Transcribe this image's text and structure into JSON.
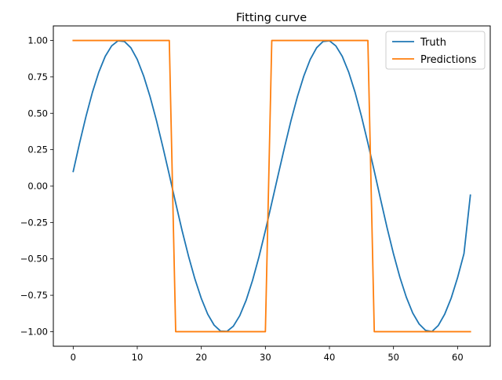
{
  "chart_data": {
    "type": "line",
    "title": "Fitting curve",
    "xlabel": "",
    "ylabel": "",
    "xlim": [
      -3.1,
      65.1
    ],
    "ylim": [
      -1.1,
      1.1
    ],
    "xticks": [
      0,
      10,
      20,
      30,
      40,
      50,
      60
    ],
    "yticks": [
      -1.0,
      -0.75,
      -0.5,
      -0.25,
      0.0,
      0.25,
      0.5,
      0.75,
      1.0
    ],
    "xtick_labels": [
      "0",
      "10",
      "20",
      "30",
      "40",
      "50",
      "60"
    ],
    "ytick_labels": [
      "−1.00",
      "−0.75",
      "−0.50",
      "−0.25",
      "0.00",
      "0.25",
      "0.50",
      "0.75",
      "1.00"
    ],
    "grid": false,
    "legend_position": "top-right",
    "x": [
      0,
      1,
      2,
      3,
      4,
      5,
      6,
      7,
      8,
      9,
      10,
      11,
      12,
      13,
      14,
      15,
      16,
      17,
      18,
      19,
      20,
      21,
      22,
      23,
      24,
      25,
      26,
      27,
      28,
      29,
      30,
      31,
      32,
      33,
      34,
      35,
      36,
      37,
      38,
      39,
      40,
      41,
      42,
      43,
      44,
      45,
      46,
      47,
      48,
      49,
      50,
      51,
      52,
      53,
      54,
      55,
      56,
      57,
      58,
      59,
      60,
      61,
      62
    ],
    "series": [
      {
        "name": "Truth",
        "color": "#1f77b4",
        "values": [
          0.1,
          0.296,
          0.479,
          0.644,
          0.783,
          0.891,
          0.963,
          0.998,
          0.993,
          0.95,
          0.87,
          0.756,
          0.614,
          0.45,
          0.268,
          0.078,
          -0.117,
          -0.306,
          -0.481,
          -0.638,
          -0.772,
          -0.88,
          -0.955,
          -0.996,
          -0.998,
          -0.962,
          -0.89,
          -0.784,
          -0.647,
          -0.486,
          -0.306,
          -0.115,
          0.078,
          0.268,
          0.45,
          0.614,
          0.756,
          0.87,
          0.95,
          0.993,
          0.998,
          0.963,
          0.891,
          0.783,
          0.644,
          0.479,
          0.296,
          0.103,
          -0.094,
          -0.287,
          -0.466,
          -0.627,
          -0.763,
          -0.872,
          -0.947,
          -0.991,
          -0.999,
          -0.957,
          -0.879,
          -0.77,
          -0.629,
          -0.464,
          -0.062
        ]
      },
      {
        "name": "Predictions",
        "color": "#ff7f0e",
        "values": [
          1,
          1,
          1,
          1,
          1,
          1,
          1,
          1,
          1,
          1,
          1,
          1,
          1,
          1,
          1,
          1,
          -1,
          -1,
          -1,
          -1,
          -1,
          -1,
          -1,
          -1,
          -1,
          -1,
          -1,
          -1,
          -1,
          -1,
          -1,
          1,
          1,
          1,
          1,
          1,
          1,
          1,
          1,
          1,
          1,
          1,
          1,
          1,
          1,
          1,
          1,
          -1,
          -1,
          -1,
          -1,
          -1,
          -1,
          -1,
          -1,
          -1,
          -1,
          -1,
          -1,
          -1,
          -1,
          -1,
          -1
        ]
      }
    ]
  }
}
